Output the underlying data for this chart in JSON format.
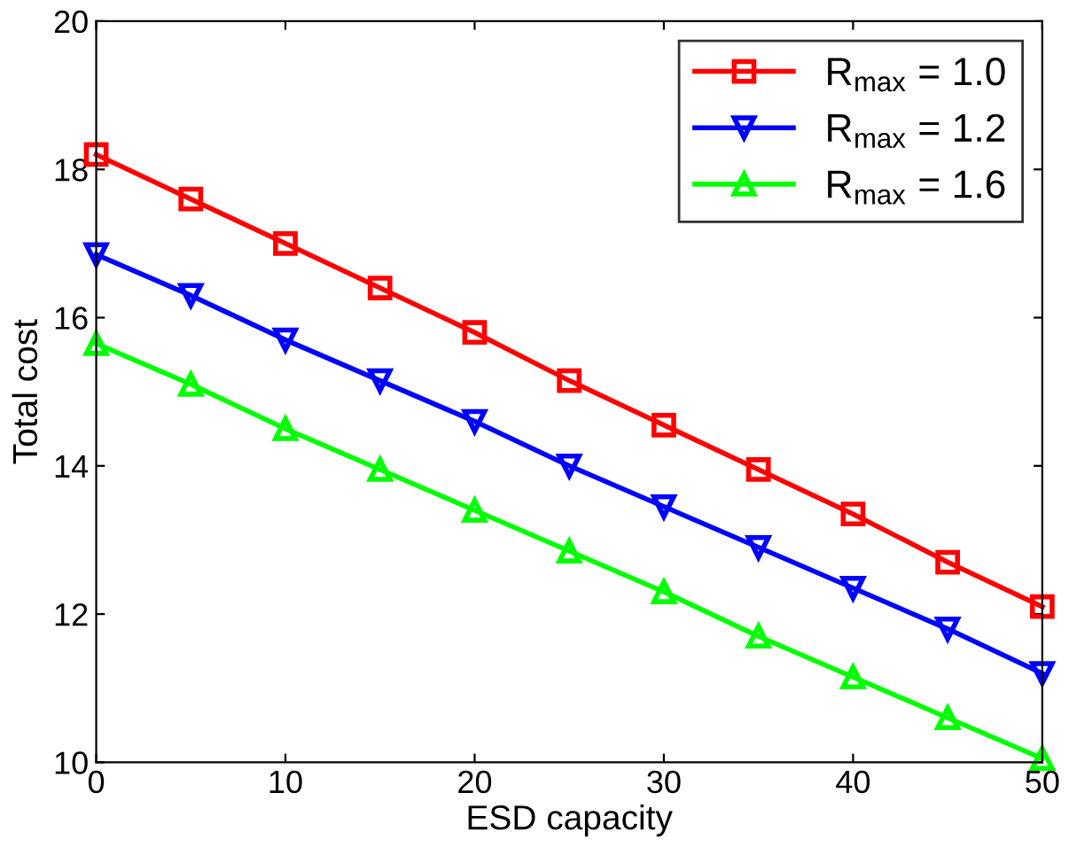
{
  "chart_data": {
    "type": "line",
    "xlabel": "ESD capacity",
    "ylabel": "Total cost",
    "x": [
      0,
      5,
      10,
      15,
      20,
      25,
      30,
      35,
      40,
      45,
      50
    ],
    "xlim": [
      0,
      50
    ],
    "xticks": [
      0,
      10,
      20,
      30,
      40,
      50
    ],
    "ylim": [
      10,
      20
    ],
    "yticks": [
      10,
      12,
      14,
      16,
      18,
      20
    ],
    "grid": false,
    "legend": "top right",
    "series": [
      {
        "name": "R$_{max}$ = 1.0",
        "color": "#ff0000",
        "marker": "square",
        "values": [
          18.2,
          17.6,
          17.0,
          16.4,
          15.8,
          15.15,
          14.55,
          13.95,
          13.35,
          12.7,
          12.1
        ]
      },
      {
        "name": "R$_{max}$ = 1.2",
        "color": "#0000ff",
        "marker": "triangle_down",
        "values": [
          16.85,
          16.3,
          15.7,
          15.15,
          14.6,
          14.0,
          13.45,
          12.9,
          12.35,
          11.8,
          11.2
        ]
      },
      {
        "name": "R$_{max}$ = 1.6",
        "color": "#00ff00",
        "marker": "triangle",
        "values": [
          15.65,
          15.1,
          14.5,
          13.95,
          13.4,
          12.85,
          12.3,
          11.7,
          11.15,
          10.6,
          10.05
        ]
      }
    ]
  }
}
